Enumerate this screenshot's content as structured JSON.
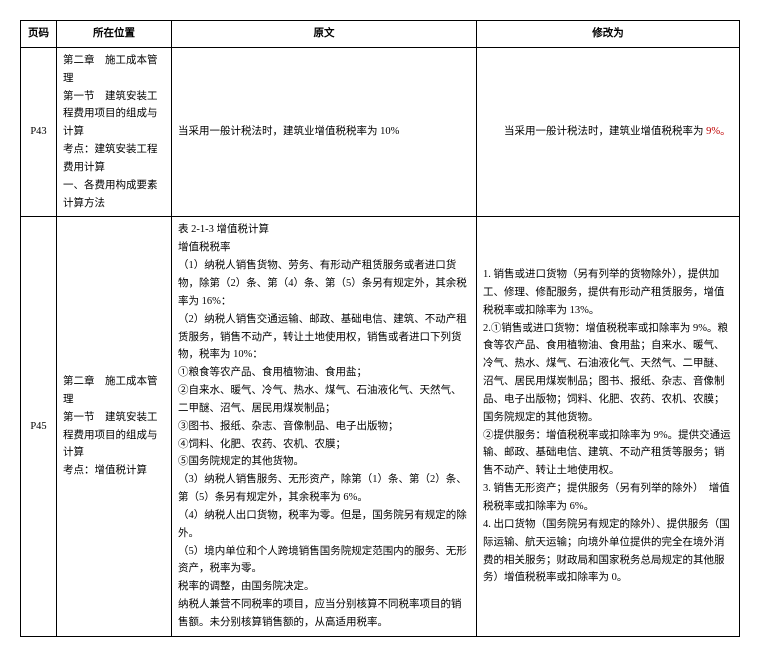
{
  "headers": {
    "page": "页码",
    "location": "所在位置",
    "original": "原文",
    "modified": "修改为"
  },
  "rows": [
    {
      "page": "P43",
      "location": "第二章　施工成本管理\n第一节　建筑安装工程费用项目的组成与计算\n考点：建筑安装工程费用计算\n一、各费用构成要素计算方法",
      "original": "当采用一般计税法时，建筑业增值税税率为 10%",
      "modified_pre": "当采用一般计税法时，建筑业增值税税率为 ",
      "modified_hl": "9%。"
    },
    {
      "page": "P45",
      "location": "第二章　施工成本管理\n第一节　建筑安装工程费用项目的组成与计算\n考点：增值税计算",
      "original": "表 2-1-3 增值税计算\n增值税税率\n（1）纳税人销售货物、劳务、有形动产租赁服务或者进口货物，除第（2）条、第（4）条、第（5）条另有规定外，其余税率为 16%：\n（2）纳税人销售交通运输、邮政、基础电信、建筑、不动产租赁服务，销售不动产，转让土地使用权，销售或者进口下列货物，税率为 10%：\n①粮食等农产品、食用植物油、食用盐；\n②自来水、暖气、冷气、热水、煤气、石油液化气、天然气、二甲醚、沼气、居民用煤炭制品；\n③图书、报纸、杂志、音像制品、电子出版物；\n④饲料、化肥、农药、农机、农膜；\n⑤国务院规定的其他货物。\n（3）纳税人销售服务、无形资产，除第（1）条、第（2）条、第（5）条另有规定外，其余税率为 6%。\n（4）纳税人出口货物，税率为零。但是，国务院另有规定的除外。\n（5）境内单位和个人跨境销售国务院规定范围内的服务、无形资产，税率为零。\n税率的调整，由国务院决定。\n纳税人兼营不同税率的项目，应当分别核算不同税率项目的销售额。未分别核算销售额的，从高适用税率。",
      "modified_html": "1. 销售或进口货物（另有列举的货物除外），提供加工、修理、修配服务，提供有形动产租赁服务，增值税税率或扣除率为 13%。\n2.①销售或进口货物：增值税税率或扣除率为 9%。粮食等农产品、食用植物油、食用盐；自来水、暖气、冷气、热水、煤气、石油液化气、天然气、二甲醚、沼气、居民用煤炭制品；图书、报纸、杂志、音像制品、电子出版物；饲料、化肥、农药、农机、农膜；国务院规定的其他货物。\n②提供服务：增值税税率或扣除率为 9%。提供交通运输、邮政、基础电信、建筑、不动产租赁等服务；销售不动产、转让土地使用权。\n3. 销售无形资产；提供服务（另有列举的除外）　增值税税率或扣除率为 6%。\n4. 出口货物（国务院另有规定的除外）、提供服务（国际运输、航天运输；向境外单位提供的完全在境外消费的相关服务；财政局和国家税务总局规定的其他服务）增值税税率或扣除率为 0。"
    }
  ]
}
